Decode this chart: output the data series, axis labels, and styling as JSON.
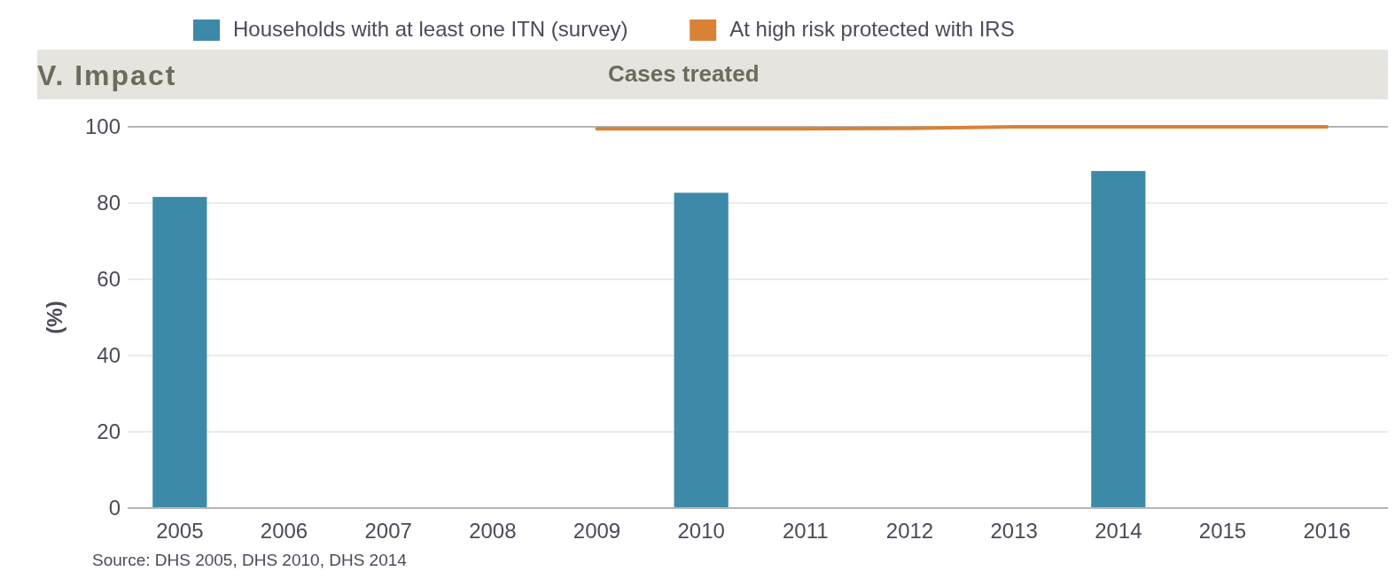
{
  "chart_data": {
    "type": "bar",
    "title": "V. Impact",
    "subtitle": "Cases treated",
    "ylabel": "(%)",
    "categories": [
      "2005",
      "2006",
      "2007",
      "2008",
      "2009",
      "2010",
      "2011",
      "2012",
      "2013",
      "2014",
      "2015",
      "2016"
    ],
    "series": [
      {
        "name": "Households with at least one ITN (survey)",
        "color": "#3d8aa8",
        "values": [
          81.6,
          null,
          null,
          null,
          null,
          82.7,
          null,
          null,
          null,
          88.4,
          null,
          null
        ]
      },
      {
        "name": "At high risk protected with IRS",
        "type": "line",
        "color": "#d98236",
        "values": [
          null,
          null,
          null,
          null,
          99.5,
          99.5,
          99.5,
          99.6,
          100,
          100,
          100,
          100
        ]
      }
    ],
    "ylim": [
      0,
      100
    ],
    "yticks": [
      0,
      20,
      40,
      60,
      80,
      100
    ],
    "grid": "y",
    "legend": "top",
    "annotations": [
      "Source: DHS 2005, DHS 2010, DHS 2014"
    ]
  }
}
